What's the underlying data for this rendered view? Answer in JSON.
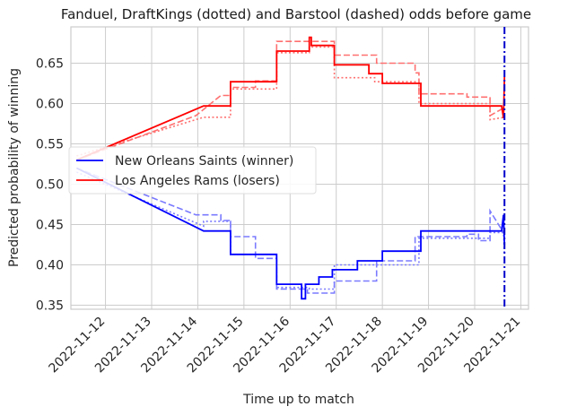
{
  "chart_data": {
    "type": "line",
    "title": "Fanduel, DraftKings (dotted) and Barstool (dashed) odds before game",
    "xlabel": "Time up to match",
    "ylabel": "Predicted probability of winning",
    "x_range": [
      "2022-11-11T06:00",
      "2022-11-21T04:00"
    ],
    "ylim": [
      0.345,
      0.695
    ],
    "x_ticks": [
      "2022-11-12",
      "2022-11-13",
      "2022-11-14",
      "2022-11-15",
      "2022-11-16",
      "2022-11-17",
      "2022-11-18",
      "2022-11-19",
      "2022-11-20",
      "2022-11-21"
    ],
    "y_ticks": [
      0.35,
      0.4,
      0.45,
      0.5,
      0.55,
      0.6,
      0.65
    ],
    "y_tick_labels": [
      "0.35",
      "0.40",
      "0.45",
      "0.50",
      "0.55",
      "0.60",
      "0.65"
    ],
    "grid": true,
    "legend_position": "center-left",
    "game_time": "2022-11-20T15:30",
    "series": [
      {
        "name": "New Orleans Saints (winner)",
        "color": "#0000ff",
        "points": [
          [
            "2022-11-11T09:00",
            0.52
          ],
          [
            "2022-11-14T03:00",
            0.442
          ],
          [
            "2022-11-14T17:00",
            0.442
          ],
          [
            "2022-11-14T17:00",
            0.413
          ],
          [
            "2022-11-15T17:00",
            0.413
          ],
          [
            "2022-11-15T17:00",
            0.376
          ],
          [
            "2022-11-16T06:00",
            0.376
          ],
          [
            "2022-11-16T06:00",
            0.358
          ],
          [
            "2022-11-16T08:00",
            0.358
          ],
          [
            "2022-11-16T08:00",
            0.376
          ],
          [
            "2022-11-16T15:00",
            0.376
          ],
          [
            "2022-11-16T15:00",
            0.385
          ],
          [
            "2022-11-16T22:00",
            0.385
          ],
          [
            "2022-11-16T22:00",
            0.394
          ],
          [
            "2022-11-17T11:00",
            0.394
          ],
          [
            "2022-11-17T11:00",
            0.405
          ],
          [
            "2022-11-18T00:00",
            0.405
          ],
          [
            "2022-11-18T00:00",
            0.417
          ],
          [
            "2022-11-18T20:00",
            0.417
          ],
          [
            "2022-11-18T20:00",
            0.442
          ],
          [
            "2022-11-20T14:00",
            0.442
          ],
          [
            "2022-11-20T15:00",
            0.462
          ],
          [
            "2022-11-20T15:30",
            0.425
          ]
        ]
      },
      {
        "name": "Los Angeles Rams (losers)",
        "color": "#ff0000",
        "points": [
          [
            "2022-11-11T09:00",
            0.53
          ],
          [
            "2022-11-14T03:00",
            0.597
          ],
          [
            "2022-11-14T17:00",
            0.597
          ],
          [
            "2022-11-14T17:00",
            0.627
          ],
          [
            "2022-11-15T17:00",
            0.627
          ],
          [
            "2022-11-15T17:00",
            0.665
          ],
          [
            "2022-11-16T10:00",
            0.665
          ],
          [
            "2022-11-16T10:00",
            0.682
          ],
          [
            "2022-11-16T11:00",
            0.682
          ],
          [
            "2022-11-16T11:00",
            0.672
          ],
          [
            "2022-11-16T23:00",
            0.672
          ],
          [
            "2022-11-16T23:00",
            0.648
          ],
          [
            "2022-11-17T17:00",
            0.648
          ],
          [
            "2022-11-17T17:00",
            0.637
          ],
          [
            "2022-11-18T00:00",
            0.637
          ],
          [
            "2022-11-18T00:00",
            0.625
          ],
          [
            "2022-11-18T20:00",
            0.625
          ],
          [
            "2022-11-18T20:00",
            0.597
          ],
          [
            "2022-11-20T14:00",
            0.597
          ],
          [
            "2022-11-20T15:00",
            0.582
          ],
          [
            "2022-11-20T15:30",
            0.633
          ]
        ]
      },
      {
        "name": "",
        "color": "#7a7aff",
        "dash": "dashed",
        "points": [
          [
            "2022-11-11T09:00",
            0.52
          ],
          [
            "2022-11-13T23:00",
            0.462
          ],
          [
            "2022-11-14T12:00",
            0.462
          ],
          [
            "2022-11-14T12:00",
            0.455
          ],
          [
            "2022-11-14T17:00",
            0.455
          ],
          [
            "2022-11-14T17:00",
            0.435
          ],
          [
            "2022-11-15T06:00",
            0.435
          ],
          [
            "2022-11-15T06:00",
            0.408
          ],
          [
            "2022-11-15T17:00",
            0.408
          ],
          [
            "2022-11-15T17:00",
            0.37
          ],
          [
            "2022-11-16T09:00",
            0.37
          ],
          [
            "2022-11-16T09:00",
            0.365
          ],
          [
            "2022-11-16T23:00",
            0.365
          ],
          [
            "2022-11-16T23:00",
            0.38
          ],
          [
            "2022-11-17T11:00",
            0.38
          ],
          [
            "2022-11-17T11:00",
            0.38
          ],
          [
            "2022-11-17T21:00",
            0.38
          ],
          [
            "2022-11-17T21:00",
            0.405
          ],
          [
            "2022-11-18T17:00",
            0.405
          ],
          [
            "2022-11-18T17:00",
            0.435
          ],
          [
            "2022-11-19T20:00",
            0.435
          ],
          [
            "2022-11-19T20:00",
            0.438
          ],
          [
            "2022-11-20T02:00",
            0.438
          ],
          [
            "2022-11-20T02:00",
            0.43
          ],
          [
            "2022-11-20T08:00",
            0.43
          ],
          [
            "2022-11-20T08:00",
            0.467
          ],
          [
            "2022-11-20T15:30",
            0.438
          ]
        ]
      },
      {
        "name": "",
        "color": "#7a7aff",
        "dash": "dotted",
        "points": [
          [
            "2022-11-11T09:00",
            0.515
          ],
          [
            "2022-11-14T03:00",
            0.448
          ],
          [
            "2022-11-14T03:00",
            0.454
          ],
          [
            "2022-11-14T17:00",
            0.454
          ],
          [
            "2022-11-14T17:00",
            0.413
          ],
          [
            "2022-11-15T17:00",
            0.413
          ],
          [
            "2022-11-15T17:00",
            0.372
          ],
          [
            "2022-11-16T10:00",
            0.372
          ],
          [
            "2022-11-16T10:00",
            0.37
          ],
          [
            "2022-11-16T23:00",
            0.37
          ],
          [
            "2022-11-16T23:00",
            0.4
          ],
          [
            "2022-11-17T20:00",
            0.4
          ],
          [
            "2022-11-17T20:00",
            0.4
          ],
          [
            "2022-11-18T19:00",
            0.4
          ],
          [
            "2022-11-18T19:00",
            0.433
          ],
          [
            "2022-11-20T08:00",
            0.433
          ],
          [
            "2022-11-20T08:00",
            0.44
          ],
          [
            "2022-11-20T15:00",
            0.44
          ],
          [
            "2022-11-20T15:30",
            0.413
          ]
        ]
      },
      {
        "name": "",
        "color": "#ff7070",
        "dash": "dashed",
        "points": [
          [
            "2022-11-11T09:00",
            0.53
          ],
          [
            "2022-11-13T23:00",
            0.585
          ],
          [
            "2022-11-14T12:00",
            0.61
          ],
          [
            "2022-11-14T17:00",
            0.61
          ],
          [
            "2022-11-14T17:00",
            0.62
          ],
          [
            "2022-11-15T06:00",
            0.62
          ],
          [
            "2022-11-15T06:00",
            0.628
          ],
          [
            "2022-11-15T17:00",
            0.628
          ],
          [
            "2022-11-15T17:00",
            0.677
          ],
          [
            "2022-11-16T09:00",
            0.677
          ],
          [
            "2022-11-16T09:00",
            0.677
          ],
          [
            "2022-11-16T23:00",
            0.677
          ],
          [
            "2022-11-16T23:00",
            0.66
          ],
          [
            "2022-11-17T21:00",
            0.66
          ],
          [
            "2022-11-17T21:00",
            0.65
          ],
          [
            "2022-11-18T17:00",
            0.65
          ],
          [
            "2022-11-18T17:00",
            0.638
          ],
          [
            "2022-11-18T19:00",
            0.638
          ],
          [
            "2022-11-18T19:00",
            0.612
          ],
          [
            "2022-11-19T20:00",
            0.612
          ],
          [
            "2022-11-19T20:00",
            0.608
          ],
          [
            "2022-11-20T08:00",
            0.608
          ],
          [
            "2022-11-20T08:00",
            0.585
          ],
          [
            "2022-11-20T15:30",
            0.595
          ]
        ]
      },
      {
        "name": "",
        "color": "#ff7070",
        "dash": "dotted",
        "points": [
          [
            "2022-11-11T09:00",
            0.535
          ],
          [
            "2022-11-14T03:00",
            0.583
          ],
          [
            "2022-11-14T17:00",
            0.583
          ],
          [
            "2022-11-14T17:00",
            0.618
          ],
          [
            "2022-11-15T17:00",
            0.618
          ],
          [
            "2022-11-15T17:00",
            0.663
          ],
          [
            "2022-11-16T10:00",
            0.663
          ],
          [
            "2022-11-16T10:00",
            0.67
          ],
          [
            "2022-11-16T23:00",
            0.67
          ],
          [
            "2022-11-16T23:00",
            0.632
          ],
          [
            "2022-11-17T20:00",
            0.632
          ],
          [
            "2022-11-17T20:00",
            0.627
          ],
          [
            "2022-11-18T19:00",
            0.627
          ],
          [
            "2022-11-18T19:00",
            0.6
          ],
          [
            "2022-11-20T08:00",
            0.6
          ],
          [
            "2022-11-20T08:00",
            0.58
          ],
          [
            "2022-11-20T15:30",
            0.583
          ]
        ]
      }
    ]
  }
}
